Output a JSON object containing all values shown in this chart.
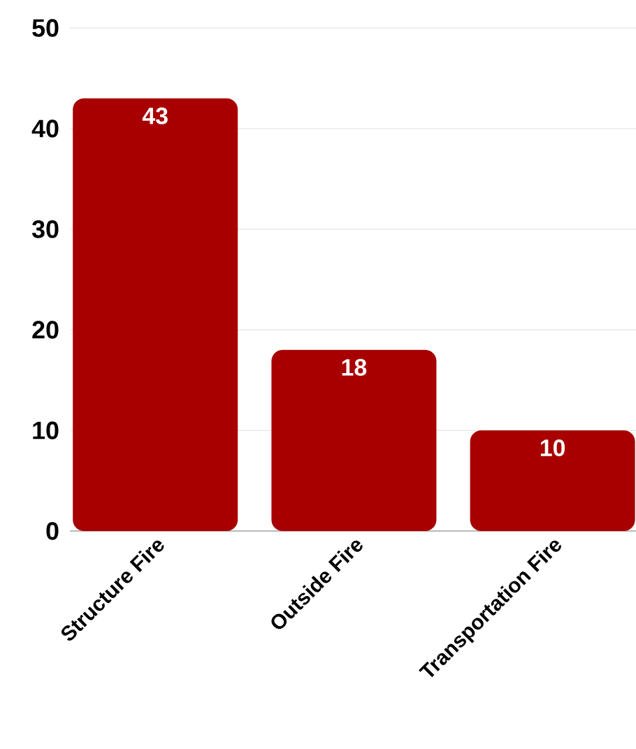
{
  "chart_data": {
    "type": "bar",
    "categories": [
      "Structure Fire",
      "Outside Fire",
      "Transportation Fire"
    ],
    "values": [
      43,
      18,
      10
    ],
    "color": "#a80000",
    "ylim": [
      0,
      50
    ],
    "yticks": [
      0,
      10,
      20,
      30,
      40,
      50
    ],
    "grid": "y",
    "data_labels": true
  }
}
